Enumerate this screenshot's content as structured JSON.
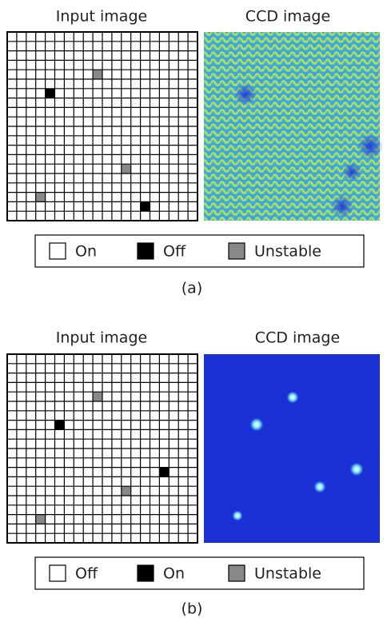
{
  "panels": [
    {
      "input_title": "Input image",
      "ccd_title": "CCD image",
      "legend": [
        "On",
        "Off",
        "Unstable"
      ],
      "caption": "(a)"
    },
    {
      "input_title": "Input image",
      "ccd_title": "CCD image",
      "legend": [
        "Off",
        "On",
        "Unstable"
      ],
      "caption": "(b)"
    }
  ]
}
